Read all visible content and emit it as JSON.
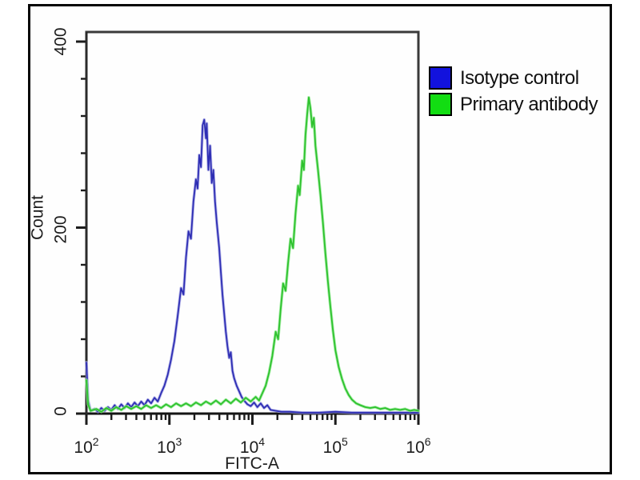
{
  "legend": {
    "position": "top-right-outside-plot",
    "items": [
      {
        "label": "Isotype control",
        "color": "#1212dd"
      },
      {
        "label": "Primary antibody",
        "color": "#12dd12"
      }
    ]
  },
  "chart_data": {
    "type": "line",
    "subtype": "flow-cytometry-histogram-overlay",
    "title": "",
    "xlabel": "FITC-A",
    "ylabel": "Count",
    "x_scale": "log10",
    "xlim_log10": [
      2,
      6
    ],
    "ylim": [
      0,
      410
    ],
    "grid": false,
    "y_ticks": [
      {
        "value": 0,
        "label": "0"
      },
      {
        "value": 200,
        "label": "200"
      },
      {
        "value": 400,
        "label": "400"
      }
    ],
    "y_minor_tick_values": [
      40,
      80,
      120,
      160,
      240,
      280,
      320,
      360
    ],
    "x_ticks": [
      {
        "log10": 2,
        "base": "10",
        "exp": "2"
      },
      {
        "log10": 3,
        "base": "10",
        "exp": "3"
      },
      {
        "log10": 4,
        "base": "10",
        "exp": "4"
      },
      {
        "log10": 5,
        "base": "10",
        "exp": "5"
      },
      {
        "log10": 6,
        "base": "10",
        "exp": "6"
      }
    ],
    "x_minor_ticks": "log decades, multiples 2-9",
    "series": [
      {
        "name": "Isotype control",
        "color": "#2e2eb4",
        "glow": "#a2a2e2",
        "points": [
          [
            2.0,
            55
          ],
          [
            2.02,
            14
          ],
          [
            2.05,
            3
          ],
          [
            2.1,
            5
          ],
          [
            2.14,
            2
          ],
          [
            2.18,
            6
          ],
          [
            2.22,
            3
          ],
          [
            2.26,
            7
          ],
          [
            2.3,
            4
          ],
          [
            2.34,
            9
          ],
          [
            2.38,
            5
          ],
          [
            2.42,
            10
          ],
          [
            2.46,
            6
          ],
          [
            2.5,
            11
          ],
          [
            2.54,
            7
          ],
          [
            2.58,
            12
          ],
          [
            2.62,
            8
          ],
          [
            2.66,
            13
          ],
          [
            2.7,
            9
          ],
          [
            2.74,
            15
          ],
          [
            2.78,
            11
          ],
          [
            2.82,
            17
          ],
          [
            2.86,
            13
          ],
          [
            2.9,
            22
          ],
          [
            2.94,
            30
          ],
          [
            2.98,
            42
          ],
          [
            3.02,
            58
          ],
          [
            3.06,
            78
          ],
          [
            3.1,
            105
          ],
          [
            3.14,
            135
          ],
          [
            3.17,
            128
          ],
          [
            3.2,
            168
          ],
          [
            3.23,
            196
          ],
          [
            3.26,
            188
          ],
          [
            3.29,
            228
          ],
          [
            3.32,
            252
          ],
          [
            3.34,
            242
          ],
          [
            3.36,
            278
          ],
          [
            3.38,
            265
          ],
          [
            3.4,
            310
          ],
          [
            3.42,
            316
          ],
          [
            3.44,
            296
          ],
          [
            3.45,
            312
          ],
          [
            3.47,
            262
          ],
          [
            3.49,
            288
          ],
          [
            3.51,
            248
          ],
          [
            3.53,
            262
          ],
          [
            3.55,
            228
          ],
          [
            3.57,
            206
          ],
          [
            3.6,
            178
          ],
          [
            3.62,
            152
          ],
          [
            3.64,
            128
          ],
          [
            3.66,
            108
          ],
          [
            3.68,
            88
          ],
          [
            3.7,
            72
          ],
          [
            3.72,
            60
          ],
          [
            3.74,
            66
          ],
          [
            3.76,
            46
          ],
          [
            3.78,
            38
          ],
          [
            3.81,
            30
          ],
          [
            3.84,
            24
          ],
          [
            3.87,
            18
          ],
          [
            3.9,
            14
          ],
          [
            3.94,
            10
          ],
          [
            3.98,
            8
          ],
          [
            4.02,
            12
          ],
          [
            4.06,
            7
          ],
          [
            4.1,
            11
          ],
          [
            4.14,
            6
          ],
          [
            4.18,
            9
          ],
          [
            4.22,
            4
          ],
          [
            4.28,
            3
          ],
          [
            4.35,
            2
          ],
          [
            4.45,
            2
          ],
          [
            4.6,
            1
          ],
          [
            4.8,
            1
          ],
          [
            5.0,
            2
          ],
          [
            5.2,
            1
          ],
          [
            5.4,
            1
          ],
          [
            5.6,
            1
          ],
          [
            5.8,
            1
          ],
          [
            6.0,
            1
          ]
        ]
      },
      {
        "name": "Primary antibody",
        "color": "#2ec22e",
        "glow": "#8fe88f",
        "points": [
          [
            2.0,
            36
          ],
          [
            2.02,
            10
          ],
          [
            2.05,
            3
          ],
          [
            2.12,
            5
          ],
          [
            2.18,
            2
          ],
          [
            2.24,
            6
          ],
          [
            2.3,
            3
          ],
          [
            2.36,
            7
          ],
          [
            2.42,
            4
          ],
          [
            2.48,
            8
          ],
          [
            2.54,
            5
          ],
          [
            2.6,
            8
          ],
          [
            2.66,
            5
          ],
          [
            2.72,
            9
          ],
          [
            2.78,
            6
          ],
          [
            2.84,
            9
          ],
          [
            2.9,
            6
          ],
          [
            2.96,
            10
          ],
          [
            3.02,
            7
          ],
          [
            3.08,
            11
          ],
          [
            3.14,
            8
          ],
          [
            3.2,
            11
          ],
          [
            3.26,
            8
          ],
          [
            3.32,
            12
          ],
          [
            3.38,
            9
          ],
          [
            3.44,
            13
          ],
          [
            3.5,
            10
          ],
          [
            3.56,
            14
          ],
          [
            3.62,
            10
          ],
          [
            3.68,
            15
          ],
          [
            3.74,
            11
          ],
          [
            3.8,
            16
          ],
          [
            3.86,
            12
          ],
          [
            3.92,
            17
          ],
          [
            3.98,
            13
          ],
          [
            4.04,
            18
          ],
          [
            4.08,
            14
          ],
          [
            4.12,
            22
          ],
          [
            4.16,
            30
          ],
          [
            4.2,
            44
          ],
          [
            4.24,
            62
          ],
          [
            4.28,
            88
          ],
          [
            4.31,
            80
          ],
          [
            4.34,
            112
          ],
          [
            4.37,
            140
          ],
          [
            4.4,
            132
          ],
          [
            4.43,
            162
          ],
          [
            4.46,
            188
          ],
          [
            4.49,
            178
          ],
          [
            4.52,
            215
          ],
          [
            4.55,
            245
          ],
          [
            4.57,
            235
          ],
          [
            4.6,
            272
          ],
          [
            4.62,
            262
          ],
          [
            4.64,
            300
          ],
          [
            4.66,
            322
          ],
          [
            4.68,
            340
          ],
          [
            4.7,
            328
          ],
          [
            4.72,
            308
          ],
          [
            4.74,
            318
          ],
          [
            4.76,
            288
          ],
          [
            4.79,
            262
          ],
          [
            4.82,
            235
          ],
          [
            4.85,
            205
          ],
          [
            4.88,
            172
          ],
          [
            4.91,
            142
          ],
          [
            4.94,
            115
          ],
          [
            4.97,
            90
          ],
          [
            5.0,
            68
          ],
          [
            5.04,
            50
          ],
          [
            5.08,
            37
          ],
          [
            5.12,
            27
          ],
          [
            5.16,
            20
          ],
          [
            5.2,
            15
          ],
          [
            5.25,
            11
          ],
          [
            5.3,
            9
          ],
          [
            5.36,
            7
          ],
          [
            5.42,
            6
          ],
          [
            5.48,
            7
          ],
          [
            5.54,
            5
          ],
          [
            5.6,
            6
          ],
          [
            5.66,
            4
          ],
          [
            5.72,
            5
          ],
          [
            5.78,
            4
          ],
          [
            5.84,
            5
          ],
          [
            5.9,
            3
          ],
          [
            5.95,
            4
          ],
          [
            6.0,
            3
          ]
        ]
      }
    ]
  }
}
